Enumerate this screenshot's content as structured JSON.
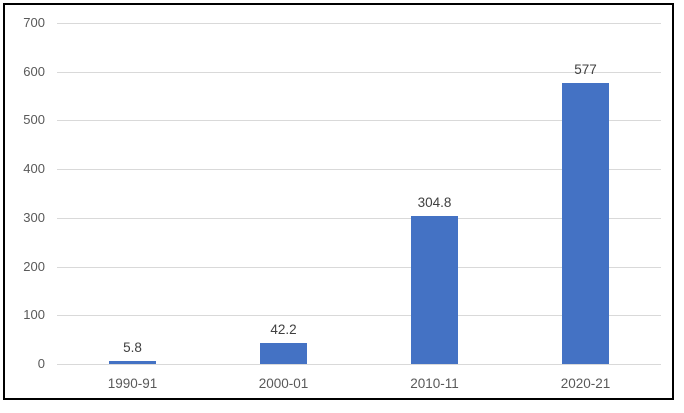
{
  "figure": {
    "background": "#ffffff",
    "border_color": "#000000"
  },
  "chart_data": {
    "type": "bar",
    "title": "",
    "categories": [
      "1990-91",
      "2000-01",
      "2010-11",
      "2020-21"
    ],
    "values": [
      5.8,
      42.2,
      304.8,
      577
    ],
    "data_labels": [
      "5.8",
      "42.2",
      "304.8",
      "577"
    ],
    "xlabel": "",
    "ylabel": "",
    "ylim": [
      0,
      700
    ],
    "yticks": [
      0,
      100,
      200,
      300,
      400,
      500,
      600,
      700
    ],
    "grid": true,
    "legend": "none",
    "bar_color": "#4472C4",
    "gridline_color": "#D9D9D9",
    "axis_line_color": "#D9D9D9",
    "axis_label_color": "#595959",
    "data_label_color": "#404040"
  }
}
